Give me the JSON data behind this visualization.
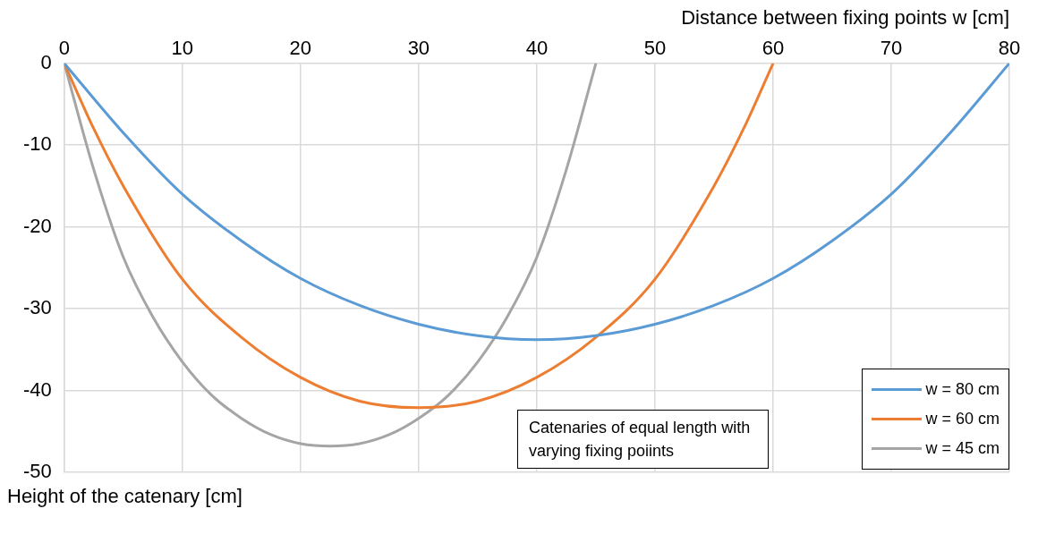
{
  "chart_data": {
    "type": "line",
    "xlabel": "Distance between fixing points w [cm]",
    "ylabel": "Height of the catenary [cm]",
    "xlim": [
      0,
      80
    ],
    "xticks": [
      0,
      10,
      20,
      30,
      40,
      50,
      60,
      70,
      80
    ],
    "ylim": [
      -50,
      0
    ],
    "yticks": [
      -50,
      -40,
      -30,
      -20,
      -10,
      0
    ],
    "grid": true,
    "legend": "bottom right",
    "marker": "none",
    "line_style": "solid",
    "annotations": [
      "Catenaries of equal length with varying fixing poiints"
    ],
    "series": [
      {
        "name": "w = 80 cm",
        "color": "#5b9bd5",
        "x": [
          0,
          5,
          10,
          15,
          20,
          25,
          30,
          35,
          40,
          45,
          50,
          55,
          60,
          65,
          70,
          75,
          80
        ],
        "values": [
          0,
          -8.5,
          -16,
          -21.7,
          -26.3,
          -29.6,
          -31.9,
          -33.3,
          -33.8,
          -33.3,
          -31.9,
          -29.6,
          -26.3,
          -21.7,
          -16,
          -8.5,
          0
        ]
      },
      {
        "name": "w = 60 cm",
        "color": "#ed7d31",
        "x": [
          0,
          2.5,
          5,
          10,
          15,
          20,
          25,
          30,
          35,
          40,
          45,
          50,
          55,
          57.5,
          60
        ],
        "values": [
          0,
          -8,
          -15,
          -26.4,
          -33.5,
          -38.4,
          -41.3,
          -42.1,
          -41.3,
          -38.4,
          -33.5,
          -26.4,
          -15,
          -8,
          0
        ]
      },
      {
        "name": "w = 45 cm",
        "color": "#a5a5a5",
        "x": [
          0,
          2.5,
          5,
          7.5,
          10,
          12.5,
          15,
          17.5,
          20,
          22.5,
          25,
          27.5,
          30,
          32.5,
          35,
          37.5,
          40,
          42.5,
          45
        ],
        "values": [
          0,
          -13,
          -23.7,
          -31,
          -36.5,
          -40.6,
          -43.4,
          -45.4,
          -46.5,
          -46.8,
          -46.5,
          -45.4,
          -43.4,
          -40.6,
          -36.5,
          -31,
          -23.7,
          -13,
          0
        ]
      }
    ]
  }
}
